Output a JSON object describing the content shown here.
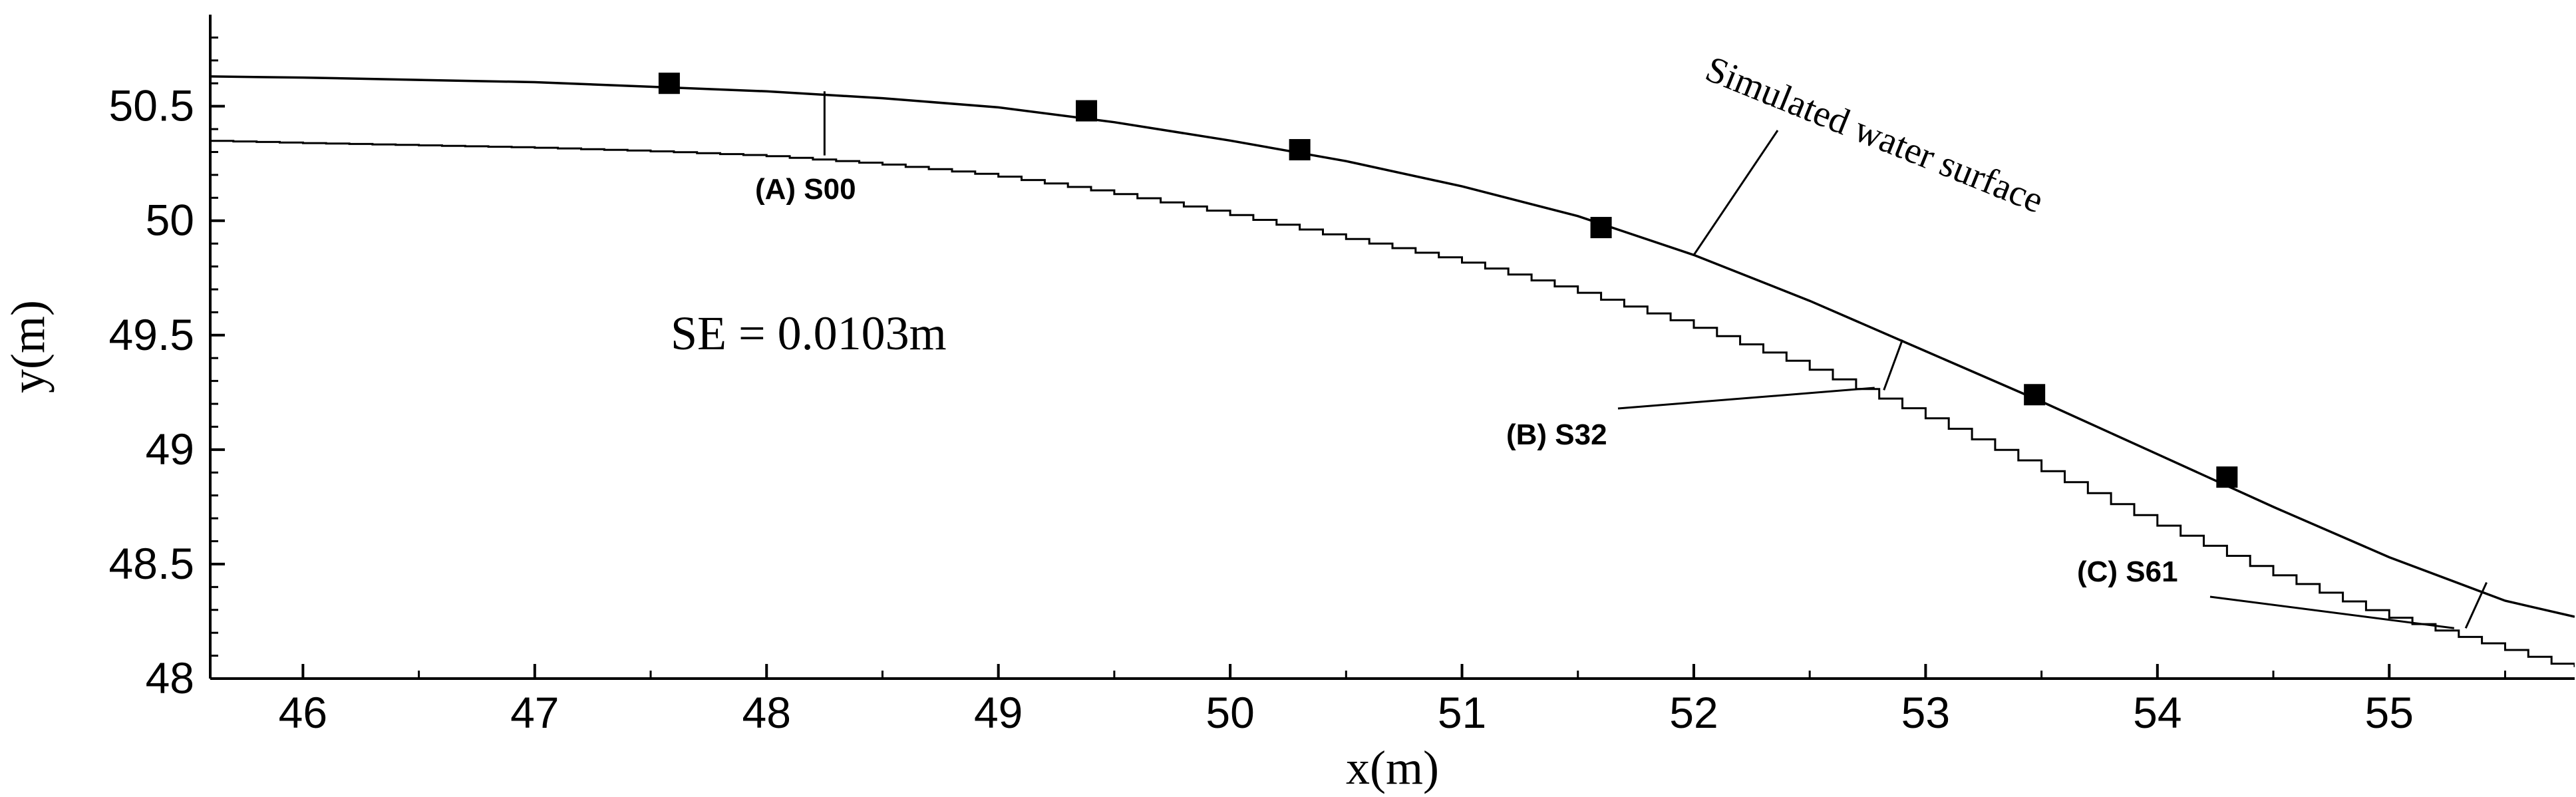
{
  "chart_data": {
    "type": "line",
    "xlabel": "x(m)",
    "ylabel": "y(m)",
    "xlim": [
      45.6,
      55.8
    ],
    "ylim": [
      48.0,
      50.9
    ],
    "xticks": [
      46,
      47,
      48,
      49,
      50,
      51,
      52,
      53,
      54,
      55
    ],
    "yticks": [
      48,
      48.5,
      49,
      49.5,
      50,
      50.5
    ],
    "xtick_labels": [
      "46",
      "47",
      "48",
      "49",
      "50",
      "51",
      "52",
      "53",
      "54",
      "55"
    ],
    "ytick_labels": [
      "48",
      "48.5",
      "49",
      "49.5",
      "50",
      "50.5"
    ],
    "grid": false,
    "series": [
      {
        "name": "Simulated water surface",
        "style": "line",
        "color": "#000000",
        "x": [
          45.6,
          46.0,
          46.5,
          47.0,
          47.5,
          48.0,
          48.5,
          49.0,
          49.5,
          50.0,
          50.5,
          51.0,
          51.5,
          52.0,
          52.5,
          53.0,
          53.5,
          54.0,
          54.5,
          55.0,
          55.5,
          55.8
        ],
        "y": [
          50.63,
          50.625,
          50.615,
          50.605,
          50.585,
          50.565,
          50.535,
          50.495,
          50.43,
          50.35,
          50.26,
          50.15,
          50.02,
          49.85,
          49.65,
          49.43,
          49.21,
          48.98,
          48.75,
          48.53,
          48.34,
          48.27
        ]
      },
      {
        "name": "",
        "style": "step",
        "color": "#000000",
        "x": [
          45.6,
          46.0,
          46.5,
          47.0,
          47.5,
          48.0,
          48.5,
          49.0,
          49.5,
          50.0,
          50.5,
          51.0,
          51.5,
          52.0,
          52.5,
          53.0,
          53.5,
          54.0,
          54.5,
          55.0,
          55.5,
          55.8
        ],
        "y": [
          50.35,
          50.34,
          50.33,
          50.32,
          50.305,
          50.285,
          50.25,
          50.2,
          50.125,
          50.035,
          49.93,
          49.83,
          49.7,
          49.55,
          49.37,
          49.16,
          48.93,
          48.69,
          48.47,
          48.28,
          48.14,
          48.05
        ]
      },
      {
        "name": "",
        "style": "markers",
        "marker": "square",
        "color": "#000000",
        "x": [
          47.58,
          49.38,
          50.3,
          51.6,
          53.47,
          54.3
        ],
        "y": [
          50.6,
          50.48,
          50.31,
          49.97,
          49.24,
          48.88
        ]
      }
    ],
    "annotations": [
      {
        "text": "SE = 0.0103m"
      },
      {
        "text": "(A) S00",
        "section_x": 48.25,
        "y_top": 50.565,
        "y_bottom": 50.285
      },
      {
        "text": "(B) S32",
        "leader_x": 52.78,
        "leader_y": 49.27,
        "section_x1": 52.82,
        "section_y1": 49.26,
        "section_x2": 52.9,
        "section_y2": 49.48
      },
      {
        "text": "(C) S61",
        "leader_x": 55.28,
        "leader_y": 48.22,
        "section_x1": 55.33,
        "section_y1": 48.22,
        "section_x2": 55.42,
        "section_y2": 48.42
      },
      {
        "text": "Simulated water surface",
        "leader_x": 52.0,
        "leader_y": 49.85
      }
    ]
  }
}
